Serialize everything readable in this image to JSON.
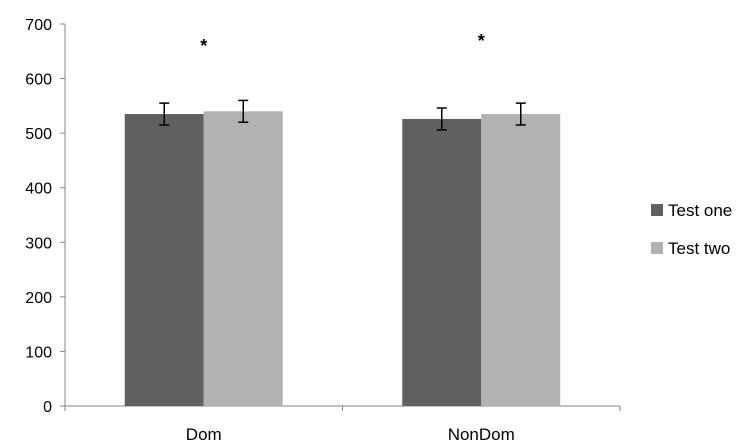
{
  "chart_data": {
    "type": "bar",
    "categories": [
      "Dom",
      "NonDom"
    ],
    "series": [
      {
        "name": "Test one",
        "values": [
          535,
          526
        ],
        "errors": [
          20,
          20
        ],
        "color": "#606060"
      },
      {
        "name": "Test two",
        "values": [
          540,
          535
        ],
        "errors": [
          20,
          20
        ],
        "color": "#b2b2b2"
      }
    ],
    "ylim": [
      0,
      700
    ],
    "yticks": [
      "0",
      "100",
      "200",
      "300",
      "400",
      "500",
      "600",
      "700"
    ],
    "annotations": [
      "*",
      "*"
    ],
    "grid": false,
    "legend_position": "right"
  }
}
